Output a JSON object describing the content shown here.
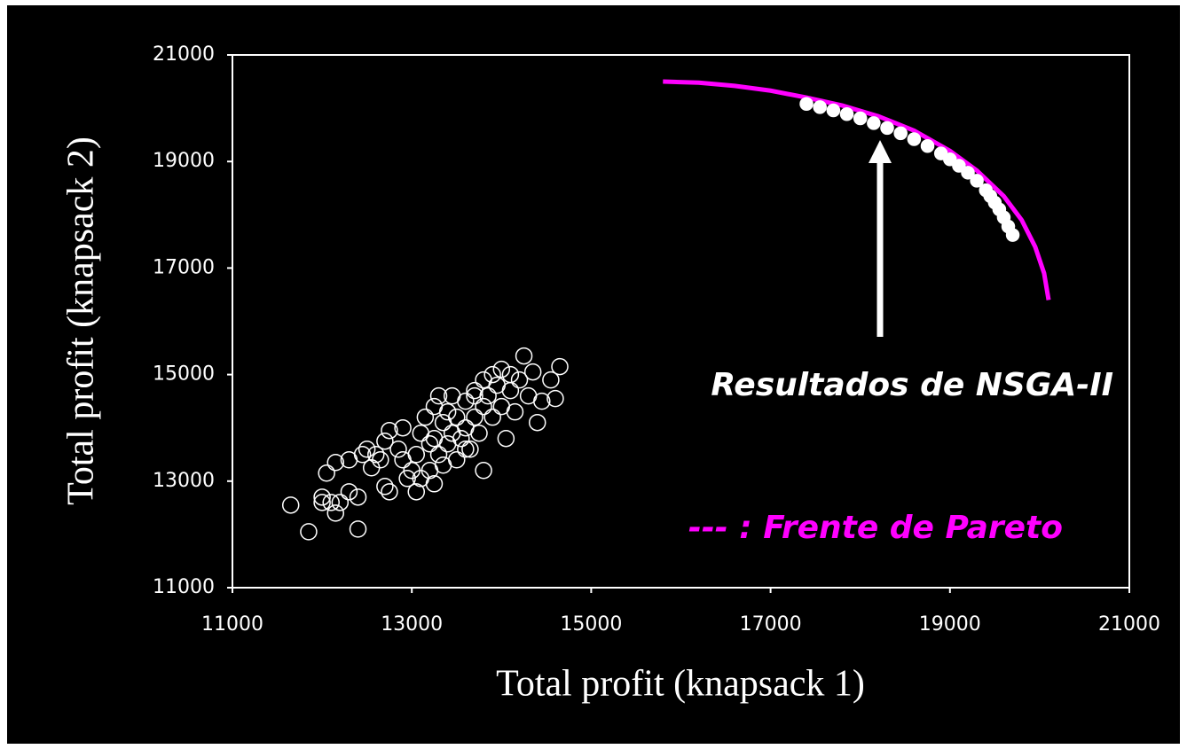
{
  "chart_data": {
    "type": "scatter",
    "xlabel": "Total profit (knapsack 1)",
    "ylabel": "Total profit (knapsack 2)",
    "xlim": [
      11000,
      21000
    ],
    "ylim": [
      11000,
      21000
    ],
    "xticks": [
      11000,
      13000,
      15000,
      17000,
      19000,
      21000
    ],
    "yticks": [
      11000,
      13000,
      15000,
      17000,
      19000,
      21000
    ],
    "series": [
      {
        "type": "scatter",
        "filled": false,
        "color": "#ffffff",
        "x": [
          11650,
          11850,
          12000,
          12000,
          12100,
          12150,
          12200,
          12300,
          12400,
          12400,
          12050,
          12150,
          12300,
          12450,
          12500,
          12550,
          12600,
          12700,
          12750,
          12700,
          12750,
          12850,
          12900,
          12950,
          12900,
          13000,
          13050,
          13050,
          13100,
          13100,
          13150,
          13200,
          13200,
          13250,
          13250,
          13300,
          13300,
          13350,
          13350,
          13400,
          13400,
          13450,
          13450,
          13500,
          13500,
          13550,
          13600,
          13600,
          13650,
          13700,
          13700,
          13750,
          13800,
          13800,
          13800,
          13850,
          13900,
          13900,
          13950,
          14000,
          14000,
          14050,
          14100,
          14100,
          14150,
          14200,
          14250,
          14300,
          14350,
          14400,
          14450,
          14550,
          14600,
          14650,
          13250,
          12650,
          13700,
          13600
        ],
        "values": [
          12550,
          12050,
          12700,
          12600,
          12600,
          12400,
          12600,
          12800,
          12700,
          12100,
          13150,
          13350,
          13400,
          13500,
          13600,
          13250,
          13500,
          12900,
          12800,
          13750,
          13950,
          13600,
          13400,
          13050,
          14000,
          13200,
          12800,
          13500,
          13900,
          13050,
          14200,
          13700,
          13200,
          14400,
          13800,
          14600,
          13500,
          14100,
          13300,
          14300,
          13700,
          14600,
          13900,
          14200,
          13400,
          13800,
          14500,
          14000,
          13600,
          14700,
          14200,
          13900,
          14900,
          14400,
          13200,
          14600,
          15000,
          14200,
          14800,
          15100,
          14400,
          13800,
          14700,
          15000,
          14300,
          14900,
          15350,
          14600,
          15050,
          14100,
          14500,
          14900,
          14550,
          15150,
          12950,
          13400,
          14600,
          13600
        ]
      },
      {
        "type": "line",
        "name": "--- : Frente de Pareto",
        "color": "#ff00ff",
        "x": [
          15800,
          16200,
          16600,
          17000,
          17400,
          17800,
          18200,
          18600,
          19000,
          19300,
          19600,
          19800,
          19950,
          20050,
          20100
        ],
        "values": [
          20500,
          20480,
          20420,
          20330,
          20200,
          20050,
          19850,
          19580,
          19200,
          18830,
          18350,
          17900,
          17400,
          16900,
          16400
        ]
      },
      {
        "type": "scatter",
        "filled": true,
        "name": "Resultados de NSGA-II",
        "color": "#ffffff",
        "x": [
          17400,
          17550,
          17700,
          17850,
          18000,
          18150,
          18300,
          18450,
          18600,
          18750,
          18900,
          19000,
          19100,
          19200,
          19300,
          19400,
          19450,
          19500,
          19550,
          19600,
          19650,
          19700
        ],
        "values": [
          20080,
          20020,
          19960,
          19890,
          19810,
          19720,
          19630,
          19530,
          19420,
          19290,
          19150,
          19040,
          18920,
          18790,
          18640,
          18460,
          18350,
          18230,
          18100,
          17950,
          17780,
          17620
        ]
      }
    ]
  }
}
